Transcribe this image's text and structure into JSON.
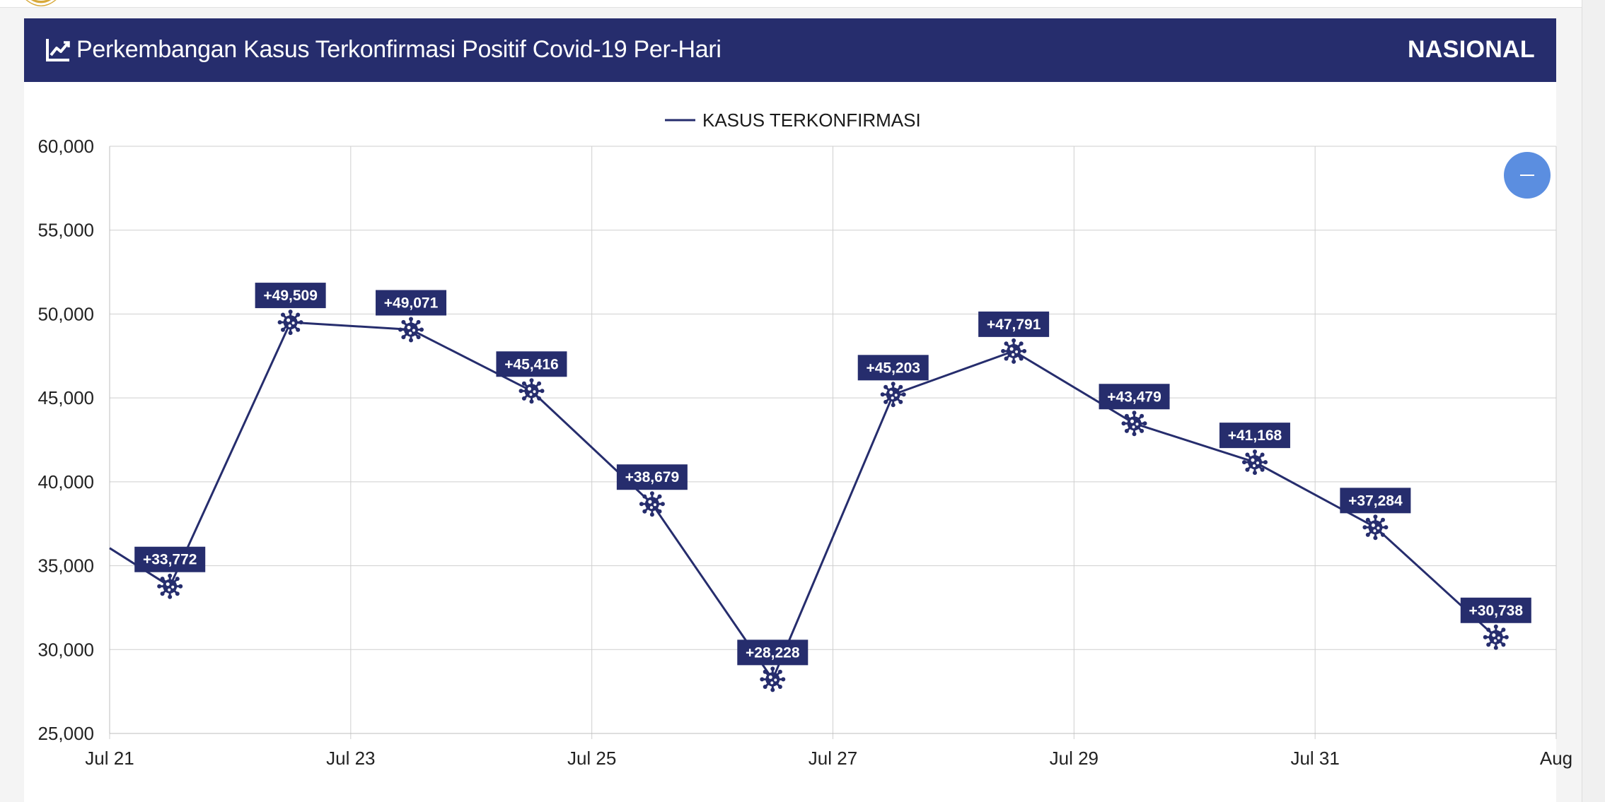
{
  "header": {
    "title": "Perkembangan Kasus Terkonfirmasi Positif Covid-19 Per-Hari",
    "region": "NASIONAL"
  },
  "colors": {
    "header_bg": "#262d6d",
    "series": "#262d6d",
    "grid": "#cfcfcf",
    "zoom_button": "#5b8ee0"
  },
  "icons": {
    "header": "line-chart-icon",
    "marker": "virus-icon",
    "zoom_button": "minus-icon"
  },
  "chart_data": {
    "type": "line",
    "legend": [
      "KASUS TERKONFIRMASI"
    ],
    "legend_position": "top-center",
    "grid": true,
    "ylim": [
      25000,
      60000
    ],
    "yticks": [
      25000,
      30000,
      35000,
      40000,
      45000,
      50000,
      55000,
      60000
    ],
    "ytick_labels": [
      "25,000",
      "30,000",
      "35,000",
      "40,000",
      "45,000",
      "50,000",
      "55,000",
      "60,000"
    ],
    "xlim": [
      "2021-07-21",
      "2021-08-02"
    ],
    "xticks": [
      "2021-07-21",
      "2021-07-23",
      "2021-07-25",
      "2021-07-27",
      "2021-07-29",
      "2021-07-31",
      "2021-08-02"
    ],
    "xtick_labels": [
      "Jul 21",
      "Jul 23",
      "Jul 25",
      "Jul 27",
      "Jul 29",
      "Jul 31",
      "Aug"
    ],
    "series": [
      {
        "name": "KASUS TERKONFIRMASI",
        "points": [
          {
            "date": "2021-07-20 12:00",
            "value": 38325,
            "label": ""
          },
          {
            "date": "2021-07-21 12:00",
            "value": 33772,
            "label": "+33,772"
          },
          {
            "date": "2021-07-22 12:00",
            "value": 49509,
            "label": "+49,509"
          },
          {
            "date": "2021-07-23 12:00",
            "value": 49071,
            "label": "+49,071"
          },
          {
            "date": "2021-07-24 12:00",
            "value": 45416,
            "label": "+45,416"
          },
          {
            "date": "2021-07-25 12:00",
            "value": 38679,
            "label": "+38,679"
          },
          {
            "date": "2021-07-26 12:00",
            "value": 28228,
            "label": "+28,228"
          },
          {
            "date": "2021-07-27 12:00",
            "value": 45203,
            "label": "+45,203"
          },
          {
            "date": "2021-07-28 12:00",
            "value": 47791,
            "label": "+47,791"
          },
          {
            "date": "2021-07-29 12:00",
            "value": 43479,
            "label": "+43,479"
          },
          {
            "date": "2021-07-30 12:00",
            "value": 41168,
            "label": "+41,168"
          },
          {
            "date": "2021-07-31 12:00",
            "value": 37284,
            "label": "+37,284"
          },
          {
            "date": "2021-08-01 12:00",
            "value": 30738,
            "label": "+30,738"
          }
        ]
      }
    ]
  }
}
